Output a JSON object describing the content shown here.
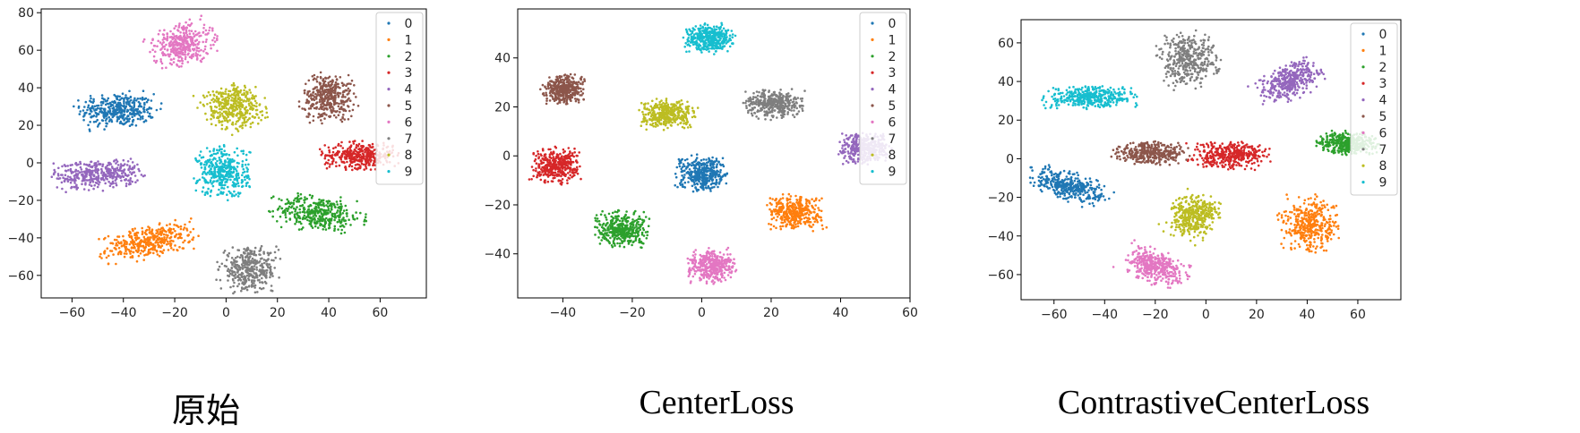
{
  "palette": [
    "#1f77b4",
    "#ff7f0e",
    "#2ca02c",
    "#d62728",
    "#9467bd",
    "#8c564b",
    "#e377c2",
    "#7f7f7f",
    "#bcbd22",
    "#17becf"
  ],
  "chart_data": [
    {
      "type": "scatter",
      "caption": "原始",
      "title": "",
      "xlabel": "",
      "ylabel": "",
      "xlim": [
        -72,
        78
      ],
      "ylim": [
        -72,
        82
      ],
      "xticks": [
        -60,
        -40,
        -20,
        0,
        20,
        40,
        60
      ],
      "yticks": [
        -60,
        -40,
        -20,
        0,
        20,
        40,
        60,
        80
      ],
      "grid": false,
      "legend_position": "top-right",
      "legend_labels": [
        "0",
        "1",
        "2",
        "3",
        "4",
        "5",
        "6",
        "7",
        "8",
        "9"
      ],
      "clusters": [
        {
          "label": "0",
          "cx": -42,
          "cy": 28,
          "rx": 13,
          "ry": 8,
          "angle": 0
        },
        {
          "label": "1",
          "cx": -30,
          "cy": -42,
          "rx": 16,
          "ry": 7,
          "angle": 15
        },
        {
          "label": "2",
          "cx": 36,
          "cy": -27,
          "rx": 15,
          "ry": 8,
          "angle": -10
        },
        {
          "label": "3",
          "cx": 52,
          "cy": 4,
          "rx": 12,
          "ry": 6,
          "angle": 0
        },
        {
          "label": "4",
          "cx": -50,
          "cy": -6,
          "rx": 15,
          "ry": 7,
          "angle": 5
        },
        {
          "label": "5",
          "cx": 40,
          "cy": 35,
          "rx": 9,
          "ry": 11,
          "angle": 0
        },
        {
          "label": "6",
          "cx": -17,
          "cy": 63,
          "rx": 11,
          "ry": 9,
          "angle": 25
        },
        {
          "label": "7",
          "cx": 9,
          "cy": -57,
          "rx": 10,
          "ry": 10,
          "angle": 0
        },
        {
          "label": "8",
          "cx": 3,
          "cy": 30,
          "rx": 10,
          "ry": 10,
          "angle": 30
        },
        {
          "label": "9",
          "cx": -1,
          "cy": -5,
          "rx": 9,
          "ry": 12,
          "angle": 0
        }
      ]
    },
    {
      "type": "scatter",
      "caption": "CenterLoss",
      "title": "",
      "xlabel": "",
      "ylabel": "",
      "xlim": [
        -53,
        60
      ],
      "ylim": [
        -58,
        60
      ],
      "xticks": [
        -40,
        -20,
        0,
        20,
        40,
        60
      ],
      "yticks": [
        -40,
        -20,
        0,
        20,
        40
      ],
      "grid": false,
      "legend_position": "top-right",
      "legend_labels": [
        "0",
        "1",
        "2",
        "3",
        "4",
        "5",
        "6",
        "7",
        "8",
        "9"
      ],
      "clusters": [
        {
          "label": "0",
          "cx": 0,
          "cy": -7,
          "rx": 6,
          "ry": 6,
          "angle": 0
        },
        {
          "label": "1",
          "cx": 27,
          "cy": -23,
          "rx": 7,
          "ry": 6,
          "angle": 0
        },
        {
          "label": "2",
          "cx": -23,
          "cy": -30,
          "rx": 6,
          "ry": 6,
          "angle": 0
        },
        {
          "label": "3",
          "cx": -42,
          "cy": -4,
          "rx": 6,
          "ry": 6,
          "angle": 0
        },
        {
          "label": "4",
          "cx": 47,
          "cy": 3,
          "rx": 6,
          "ry": 5,
          "angle": 0
        },
        {
          "label": "5",
          "cx": -40,
          "cy": 27,
          "rx": 5,
          "ry": 5,
          "angle": 0
        },
        {
          "label": "6",
          "cx": 3,
          "cy": -45,
          "rx": 6,
          "ry": 6,
          "angle": 0
        },
        {
          "label": "7",
          "cx": 21,
          "cy": 21,
          "rx": 7,
          "ry": 5,
          "angle": 0
        },
        {
          "label": "8",
          "cx": -10,
          "cy": 17,
          "rx": 7,
          "ry": 5,
          "angle": 0
        },
        {
          "label": "9",
          "cx": 2,
          "cy": 48,
          "rx": 6,
          "ry": 5,
          "angle": 0
        }
      ]
    },
    {
      "type": "scatter",
      "caption": "ContrastiveCenterLoss",
      "title": "",
      "xlabel": "",
      "ylabel": "",
      "xlim": [
        -73,
        77
      ],
      "ylim": [
        -73,
        72
      ],
      "xticks": [
        -60,
        -40,
        -20,
        0,
        20,
        40,
        60
      ],
      "yticks": [
        -60,
        -40,
        -20,
        0,
        20,
        40,
        60
      ],
      "grid": false,
      "legend_position": "top-right",
      "legend_labels": [
        "0",
        "1",
        "2",
        "3",
        "4",
        "5",
        "6",
        "7",
        "8",
        "9"
      ],
      "clusters": [
        {
          "label": "0",
          "cx": -54,
          "cy": -14,
          "rx": 14,
          "ry": 6,
          "angle": -25
        },
        {
          "label": "1",
          "cx": 41,
          "cy": -34,
          "rx": 10,
          "ry": 12,
          "angle": 0
        },
        {
          "label": "2",
          "cx": 56,
          "cy": 8,
          "rx": 10,
          "ry": 5,
          "angle": 0
        },
        {
          "label": "3",
          "cx": 9,
          "cy": 2,
          "rx": 13,
          "ry": 6,
          "angle": 0
        },
        {
          "label": "4",
          "cx": 33,
          "cy": 40,
          "rx": 12,
          "ry": 7,
          "angle": 30
        },
        {
          "label": "5",
          "cx": -22,
          "cy": 3,
          "rx": 12,
          "ry": 5,
          "angle": 0
        },
        {
          "label": "6",
          "cx": -20,
          "cy": -56,
          "rx": 11,
          "ry": 7,
          "angle": -30
        },
        {
          "label": "7",
          "cx": -7,
          "cy": 51,
          "rx": 10,
          "ry": 12,
          "angle": 0
        },
        {
          "label": "8",
          "cx": -5,
          "cy": -30,
          "rx": 8,
          "ry": 10,
          "angle": -30
        },
        {
          "label": "9",
          "cx": -46,
          "cy": 32,
          "rx": 15,
          "ry": 5,
          "angle": 0
        }
      ]
    }
  ]
}
